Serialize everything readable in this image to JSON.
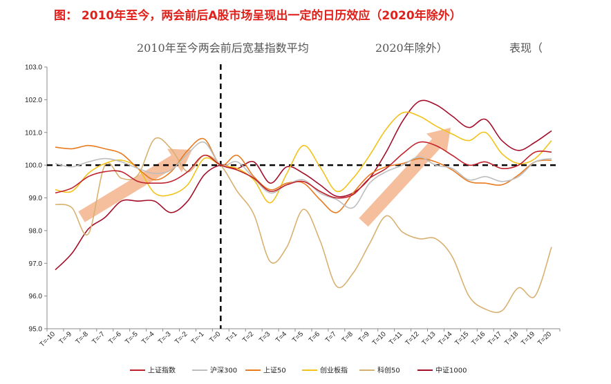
{
  "headline": "图： 2010年至今，两会前后A股市场呈现出一定的日历效应（2020年除外）",
  "chart_data": {
    "type": "line",
    "title_parts": [
      "2010年至今两会前后宽基指数平均",
      "2020年除外）",
      "表现（"
    ],
    "xlabel": "",
    "ylabel": "",
    "ylim": [
      95.0,
      103.0
    ],
    "yticks": [
      "95.0",
      "96.0",
      "97.0",
      "98.0",
      "99.0",
      "100.0",
      "101.0",
      "102.0",
      "103.0"
    ],
    "categories": [
      "T=-10",
      "T=-9",
      "T=-8",
      "T=-7",
      "T=-6",
      "T=-5",
      "T=-4",
      "T=-3",
      "T=-2",
      "T=-1",
      "T=0",
      "T=1",
      "T=2",
      "T=3",
      "T=4",
      "T=5",
      "T=6",
      "T=7",
      "T=8",
      "T=9",
      "T=10",
      "T=11",
      "T=12",
      "T=13",
      "T=14",
      "T=15",
      "T=16",
      "T=17",
      "T=18",
      "T=19",
      "T=20"
    ],
    "reference_line": 100.0,
    "event_day": "T=0",
    "series": [
      {
        "name": "上证指数",
        "color": "#c0202a",
        "values": [
          99.15,
          99.3,
          99.65,
          99.8,
          99.8,
          99.5,
          99.45,
          99.5,
          99.8,
          100.3,
          100.0,
          99.85,
          99.6,
          99.2,
          99.4,
          99.5,
          99.2,
          99.0,
          99.1,
          99.6,
          99.9,
          100.35,
          100.7,
          100.6,
          100.3,
          100.0,
          100.1,
          99.9,
          100.0,
          100.4,
          100.4
        ]
      },
      {
        "name": "沪深300",
        "color": "#bdbdbd",
        "values": [
          100.05,
          99.95,
          100.1,
          100.2,
          100.1,
          99.9,
          99.75,
          99.85,
          100.35,
          100.7,
          100.0,
          100.1,
          99.6,
          99.15,
          99.4,
          99.55,
          99.15,
          98.95,
          98.7,
          99.45,
          99.8,
          100.0,
          100.25,
          100.0,
          99.9,
          99.55,
          99.65,
          99.5,
          99.65,
          100.1,
          100.2
        ]
      },
      {
        "name": "上证50",
        "color": "#e87a1f",
        "values": [
          100.55,
          100.5,
          100.6,
          100.5,
          100.35,
          99.9,
          99.55,
          99.8,
          100.45,
          100.8,
          100.0,
          100.3,
          99.65,
          99.25,
          99.45,
          99.45,
          98.95,
          98.55,
          99.15,
          99.7,
          99.95,
          100.05,
          100.2,
          100.1,
          99.85,
          99.5,
          99.45,
          99.4,
          99.7,
          100.1,
          100.15
        ]
      },
      {
        "name": "创业板指",
        "color": "#f2c21a",
        "values": [
          99.25,
          99.2,
          99.75,
          100.05,
          100.15,
          99.9,
          99.15,
          99.1,
          99.4,
          100.2,
          100.0,
          99.9,
          99.55,
          98.85,
          99.75,
          100.6,
          99.95,
          99.2,
          99.6,
          100.3,
          101.1,
          101.6,
          101.5,
          101.2,
          100.95,
          100.75,
          101.0,
          100.35,
          100.05,
          100.2,
          100.75
        ]
      },
      {
        "name": "科创50",
        "color": "#d8b070",
        "values": [
          98.8,
          98.7,
          97.9,
          100.0,
          99.6,
          99.7,
          100.8,
          100.5,
          99.8,
          100.3,
          100.0,
          99.2,
          98.5,
          97.05,
          97.5,
          98.65,
          97.7,
          96.3,
          96.7,
          97.6,
          98.45,
          97.95,
          97.75,
          97.75,
          97.2,
          96.0,
          95.6,
          95.55,
          96.25,
          96.0,
          97.5
        ]
      },
      {
        "name": "中证1000",
        "color": "#a30d28",
        "values": [
          96.8,
          97.3,
          98.05,
          98.4,
          98.9,
          98.9,
          98.9,
          98.55,
          98.9,
          99.7,
          100.0,
          99.9,
          100.1,
          99.45,
          99.95,
          99.75,
          99.4,
          99.05,
          99.15,
          99.6,
          100.4,
          101.35,
          101.95,
          101.85,
          101.5,
          101.15,
          101.4,
          100.75,
          100.45,
          100.7,
          101.05
        ]
      }
    ]
  }
}
